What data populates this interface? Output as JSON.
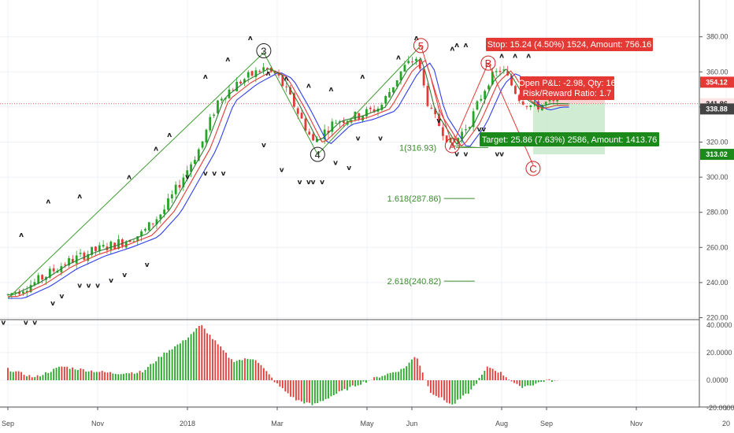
{
  "chart_data": {
    "type": "line",
    "price_axis": {
      "ticks": [
        "380.00",
        "360.00",
        "340.00",
        "320.00",
        "300.00",
        "280.00",
        "260.00",
        "240.00",
        "220.00"
      ],
      "tick_values": [
        380,
        360,
        340,
        320,
        300,
        280,
        260,
        240,
        220
      ],
      "ylim": [
        211,
        385
      ]
    },
    "oscillator_axis": {
      "ticks": [
        "40.0000",
        "20.0000",
        "0.0000",
        "-20.0000"
      ],
      "tick_values": [
        40,
        20,
        0,
        -20
      ],
      "ylim": [
        -22,
        43
      ]
    },
    "time_axis": {
      "labels": [
        "Sep",
        "Nov",
        "2018",
        "Mar",
        "May",
        "Jun",
        "Aug",
        "Sep",
        "Nov",
        "20"
      ],
      "months_index": [
        0,
        2,
        4,
        6,
        8,
        9,
        11,
        12,
        14,
        16
      ]
    },
    "price_series": {
      "name": "price",
      "x": [
        0,
        0.6,
        1.2,
        1.8,
        2.4,
        3.0,
        3.5,
        3.9,
        4.3,
        4.7,
        5.2,
        5.7,
        6.0,
        6.4,
        6.8,
        7.3,
        7.8,
        8.3,
        8.8,
        9.1,
        9.4,
        9.9,
        10.3,
        10.7,
        11.0,
        11.4,
        11.7,
        12.0,
        12.3
      ],
      "values": [
        233,
        240,
        250,
        257,
        262,
        268,
        282,
        300,
        318,
        345,
        355,
        362,
        358,
        340,
        320,
        332,
        335,
        340,
        362,
        368,
        338,
        318,
        332,
        355,
        362,
        345,
        340,
        342,
        341.86
      ]
    },
    "oscillator_series": {
      "name": "oscillator",
      "x": [
        0,
        0.6,
        1.2,
        1.8,
        2.4,
        3.0,
        3.5,
        3.9,
        4.3,
        4.7,
        5.0,
        5.5,
        6.0,
        6.4,
        6.8,
        7.3,
        7.8,
        8.3,
        8.8,
        9.1,
        9.4,
        9.9,
        10.3,
        10.7,
        11.0,
        11.4,
        11.7,
        12.0,
        12.3
      ],
      "values": [
        8,
        2,
        10,
        7,
        5,
        6,
        20,
        28,
        40,
        25,
        14,
        16,
        -3,
        -14,
        -18,
        -10,
        -3,
        3,
        8,
        18,
        -8,
        -18,
        -8,
        10,
        5,
        -5,
        -3,
        0,
        -1
      ]
    },
    "wave_labels": [
      {
        "label": "3",
        "x": 5.7,
        "value": 372,
        "color": "#1d1d1d"
      },
      {
        "label": "4",
        "x": 6.9,
        "value": 313,
        "color": "#1d1d1d"
      },
      {
        "label": "5",
        "x": 9.2,
        "value": 375,
        "color": "#cc2222"
      },
      {
        "label": "A",
        "x": 9.9,
        "value": 318,
        "color": "#cc2222"
      },
      {
        "label": "B",
        "x": 10.7,
        "value": 365,
        "color": "#cc2222"
      },
      {
        "label": "C",
        "x": 11.7,
        "value": 305,
        "color": "#cc2222"
      }
    ],
    "fib_levels": [
      {
        "label": "1(316.93)",
        "value": 316.93,
        "x_text": 8.72,
        "x_end": 10.7
      },
      {
        "label": "1.618(287.86)",
        "value": 287.86,
        "x_text": 8.45,
        "x_end": 10.4
      },
      {
        "label": "2.618(240.82)",
        "value": 240.82,
        "x_text": 8.45,
        "x_end": 10.4
      }
    ],
    "position": {
      "entry": 341.86,
      "stop": 354.12,
      "target": 313.02,
      "stop_text": "Stop: 15.24 (4.50%) 1524, Amount: 756.16",
      "pnl_line1": "Open P&L: -2.98, Qty: 16",
      "pnl_line2": "Risk/Reward Ratio: 1.7",
      "target_text": "Target: 25.86 (7.63%) 2586, Amount: 1413.76"
    },
    "price_tags": [
      {
        "text": "354.12",
        "value": 354.12,
        "bg": "#e53935",
        "fg": "#ffffff"
      },
      {
        "text": "341.86",
        "value": 341.86,
        "bg": "#fde3e3",
        "fg": "#1d1d1d"
      },
      {
        "text": "338.88",
        "value": 338.88,
        "bg": "#444444",
        "fg": "#ffffff"
      },
      {
        "text": "313.02",
        "value": 313.02,
        "bg": "#1b8a1b",
        "fg": "#ffffff"
      }
    ],
    "colors": {
      "up": "#26a626",
      "down": "#e53935",
      "ma_fast": "#2e7d32",
      "ma_mid": "#e53935",
      "ma_slow": "#2f3cf0",
      "wave_line": "#3d9b2f",
      "fib": "#3b8b2e",
      "stop_zone": "#f8c9c9",
      "target_zone": "#c8eacb"
    }
  }
}
